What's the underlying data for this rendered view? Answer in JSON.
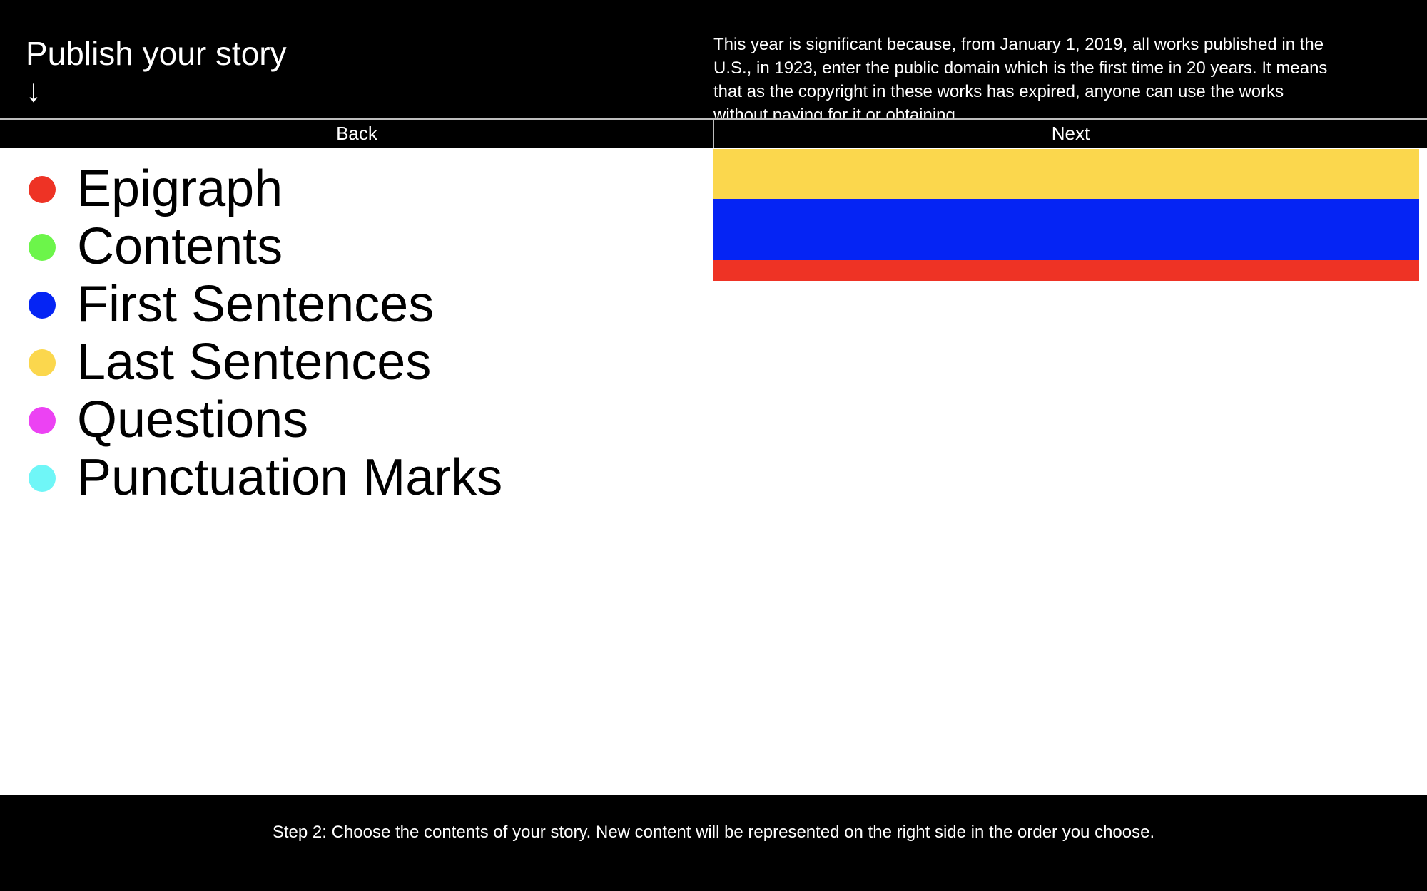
{
  "header": {
    "title": "Publish your story",
    "arrow": "↓",
    "intro": "This year is significant because, from January 1, 2019, all works published in the U.S., in 1923, enter the public domain which is the first time in 20 years. It means that as the copyright in these works has expired, anyone can use the works without paying for it or obtaining"
  },
  "nav": {
    "back_label": "Back",
    "next_label": "Next"
  },
  "menu": {
    "items": [
      {
        "label": "Epigraph",
        "color": "#ee3325"
      },
      {
        "label": "Contents",
        "color": "#6cf54a"
      },
      {
        "label": "First Sentences",
        "color": "#0524f4"
      },
      {
        "label": "Last Sentences",
        "color": "#fbd74d"
      },
      {
        "label": "Questions",
        "color": "#ec42f3"
      },
      {
        "label": "Punctuation Marks",
        "color": "#6ff6f7"
      }
    ]
  },
  "preview": {
    "bars": [
      {
        "item": "Last Sentences",
        "color": "#fbd74d"
      },
      {
        "item": "First Sentences",
        "color": "#0524f4"
      },
      {
        "item": "Epigraph",
        "color": "#ee3325"
      }
    ]
  },
  "footer": {
    "instruction": "Step 2: Choose the contents of your story. New content will be represented on the right side in the order you choose."
  }
}
